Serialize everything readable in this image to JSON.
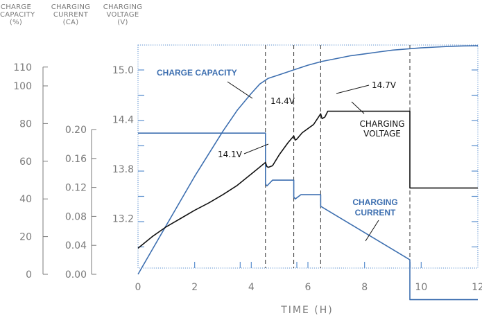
{
  "chart_data": {
    "type": "line",
    "xlabel": "TIME (H)",
    "xlim": [
      0,
      12
    ],
    "x_ticks": [
      "0",
      "2",
      "4",
      "6",
      "8",
      "10",
      "12"
    ],
    "axes": {
      "capacity": {
        "title": [
          "CHARGE",
          "CAPACITY",
          "(%)"
        ],
        "ticks": [
          "0",
          "20",
          "40",
          "60",
          "80",
          "100",
          "110"
        ],
        "ylim": [
          0,
          110
        ]
      },
      "current": {
        "title": [
          "CHARGING",
          "CURRENT",
          "(CA)"
        ],
        "ticks": [
          "0.00",
          "0.04",
          "0.08",
          "0.12",
          "0.16",
          "0.20"
        ],
        "ylim": [
          0,
          0.2
        ]
      },
      "voltage": {
        "title": [
          "CHARGING",
          "VOLTAGE",
          "(V)"
        ],
        "ticks": [
          "13.2",
          "13.8",
          "14.4",
          "15.0"
        ],
        "ylim": [
          12.55,
          15.2
        ]
      }
    },
    "series": [
      {
        "name": "CHARGE CAPACITY",
        "axis": "capacity",
        "color": "#3d6fb0",
        "x": [
          0,
          0.5,
          1,
          1.5,
          2,
          2.5,
          3,
          3.5,
          4,
          4.3,
          4.6,
          5,
          5.5,
          6,
          6.5,
          7,
          7.5,
          8,
          8.5,
          9,
          9.5,
          10,
          10.5,
          11,
          11.5,
          12
        ],
        "values": [
          0,
          13,
          26,
          39,
          52,
          64,
          76,
          87,
          96,
          101,
          104,
          106,
          108.5,
          111,
          113,
          114.5,
          116,
          117,
          118,
          119,
          119.6,
          120.2,
          120.6,
          121,
          121.2,
          121.3
        ]
      },
      {
        "name": "CHARGING CURRENT",
        "axis": "current",
        "color": "#3d6fb0",
        "x": [
          0,
          4.5,
          4.5,
          4.55,
          4.75,
          5.5,
          5.5,
          5.55,
          5.75,
          6.45,
          6.45,
          9.6,
          9.6,
          12
        ],
        "values": [
          0.195,
          0.195,
          0.125,
          0.122,
          0.13,
          0.13,
          0.107,
          0.104,
          0.11,
          0.11,
          0.094,
          0.02,
          -0.035,
          -0.035
        ]
      },
      {
        "name": "CHARGING VOLTAGE",
        "axis": "voltage",
        "color": "#111111",
        "x": [
          0,
          0.5,
          1,
          1.5,
          2,
          2.5,
          3,
          3.5,
          4,
          4.5,
          4.55,
          4.6,
          4.75,
          5,
          5.3,
          5.5,
          5.55,
          5.6,
          5.8,
          6.2,
          6.45,
          6.5,
          6.6,
          6.7,
          7,
          8,
          9,
          9.6,
          9.6,
          10,
          12
        ],
        "values": [
          12.84,
          12.98,
          13.1,
          13.2,
          13.3,
          13.39,
          13.49,
          13.6,
          13.74,
          13.88,
          13.83,
          13.82,
          13.84,
          13.98,
          14.12,
          14.2,
          14.15,
          14.16,
          14.24,
          14.34,
          14.47,
          14.41,
          14.43,
          14.5,
          14.5,
          14.5,
          14.5,
          14.5,
          13.57,
          13.57,
          13.57
        ]
      }
    ],
    "vlines": [
      4.5,
      5.5,
      6.45,
      9.6
    ],
    "annotations": [
      {
        "text": "CHARGE CAPACITY",
        "style": "blue-bold"
      },
      {
        "text": "14.4V",
        "style": "plain"
      },
      {
        "text": "14.7V",
        "style": "plain"
      },
      {
        "text": "CHARGING",
        "style": "plain"
      },
      {
        "text": "VOLTAGE",
        "style": "plain"
      },
      {
        "text": "14.1V",
        "style": "plain"
      },
      {
        "text": "CHARGING",
        "style": "blue-bold"
      },
      {
        "text": "CURRENT",
        "style": "blue-bold"
      }
    ],
    "grid": false,
    "legend": "none"
  },
  "colors": {
    "blue": "#3d6fb0",
    "black": "#111111",
    "axis_gray": "#7a7a7a",
    "frame": "#5b8fcf"
  }
}
